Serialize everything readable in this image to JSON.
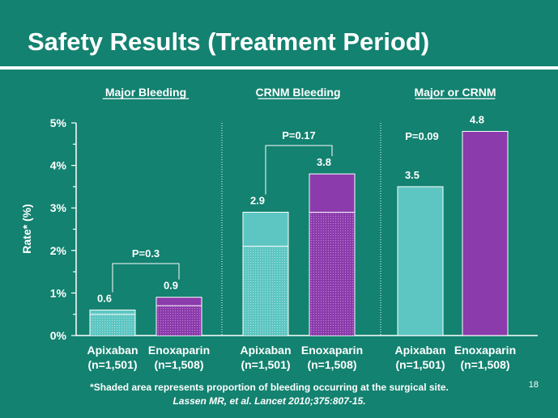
{
  "slide": {
    "title": "Safety Results (Treatment Period)",
    "footnote": "*Shaded area represents proportion of bleeding occurring at the surgical site.",
    "citation": "Lassen MR, et al.  Lancet 2010;375:807-15.",
    "page_number": "18"
  },
  "colors": {
    "background": "#138270",
    "apixaban": "#5ec6c2",
    "enoxaparin": "#8b3bab",
    "text": "#ffffff"
  },
  "chart_data": {
    "type": "bar",
    "ylabel": "Rate* (%)",
    "ylim": [
      0,
      5
    ],
    "yticks": [
      "0%",
      "1%",
      "2%",
      "3%",
      "4%",
      "5%"
    ],
    "groups": [
      {
        "name": "Major Bleeding",
        "p_value": "P=0.3",
        "bars": [
          {
            "drug": "Apixaban",
            "n": "(n=1,501)",
            "value": 0.6,
            "label": "0.6",
            "surgical_site": 0.5
          },
          {
            "drug": "Enoxaparin",
            "n": "(n=1,508)",
            "value": 0.9,
            "label": "0.9",
            "surgical_site": 0.7
          }
        ]
      },
      {
        "name": "CRNM Bleeding",
        "p_value": "P=0.17",
        "bars": [
          {
            "drug": "Apixaban",
            "n": "(n=1,501)",
            "value": 2.9,
            "label": "2.9",
            "surgical_site": 2.1
          },
          {
            "drug": "Enoxaparin",
            "n": "(n=1,508)",
            "value": 3.8,
            "label": "3.8",
            "surgical_site": 2.9
          }
        ]
      },
      {
        "name": "Major or CRNM",
        "p_value": "P=0.09",
        "bars": [
          {
            "drug": "Apixaban",
            "n": "(n=1,501)",
            "value": 3.5,
            "label": "3.5",
            "surgical_site": null
          },
          {
            "drug": "Enoxaparin",
            "n": "(n=1,508)",
            "value": 4.8,
            "label": "4.8",
            "surgical_site": null
          }
        ]
      }
    ]
  }
}
